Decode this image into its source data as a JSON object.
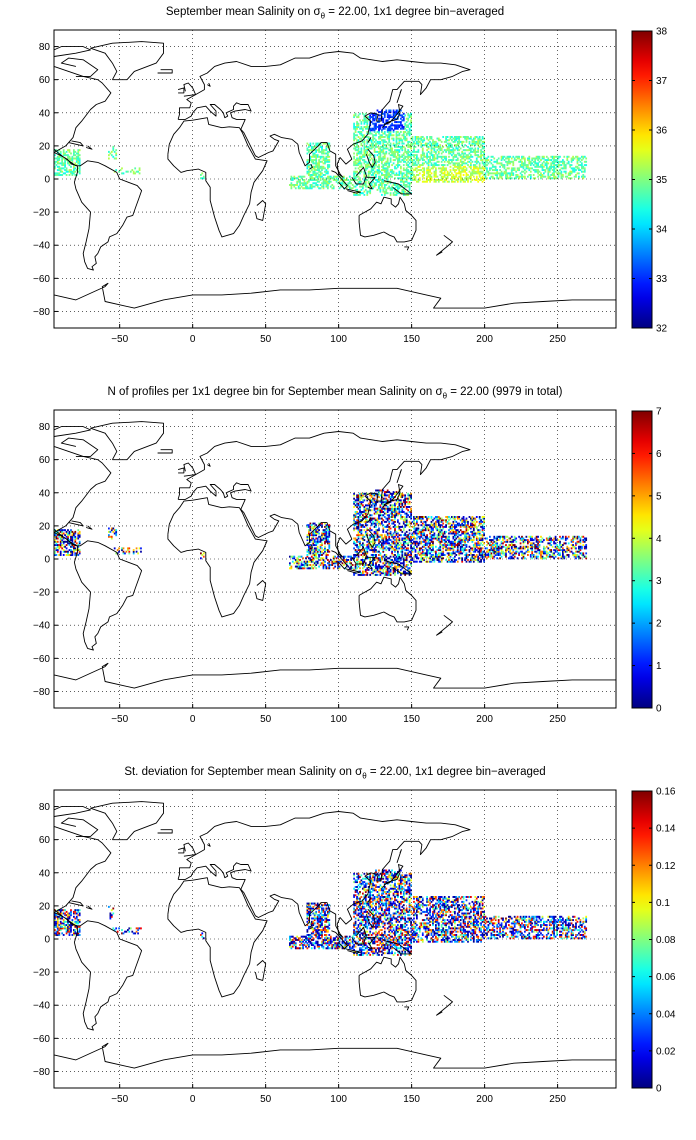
{
  "figures": [
    {
      "id": "salinity-mean",
      "title_prefix": "September mean Salinity on σ",
      "title_sub": "θ",
      "title_suffix": " = 22.00, 1x1 degree bin−averaged",
      "colorbar": {
        "min": 32,
        "max": 38,
        "ticks": [
          "32",
          "33",
          "34",
          "35",
          "36",
          "37",
          "38"
        ]
      },
      "seed": 11
    },
    {
      "id": "profile-count",
      "title_prefix": "N of profiles per 1x1 degree bin for September mean Salinity on σ",
      "title_sub": "θ",
      "title_suffix": " = 22.00 (9979 in total)",
      "colorbar": {
        "min": 0,
        "max": 7,
        "ticks": [
          "0",
          "1",
          "2",
          "3",
          "4",
          "5",
          "6",
          "7"
        ]
      },
      "seed": 23
    },
    {
      "id": "salinity-stdev",
      "title_prefix": "St. deviation for September mean Salinity on σ",
      "title_sub": "θ",
      "title_suffix": " = 22.00, 1x1 degree bin−averaged",
      "colorbar": {
        "min": 0,
        "max": 0.16,
        "ticks": [
          "0",
          "0.02",
          "0.04",
          "0.06",
          "0.08",
          "0.1",
          "0.12",
          "0.14",
          "0.16"
        ]
      },
      "seed": 37
    }
  ],
  "axes": {
    "x_ticks": [
      "−50",
      "0",
      "50",
      "100",
      "150",
      "200",
      "250"
    ],
    "y_ticks": [
      "−80",
      "−60",
      "−40",
      "−20",
      "0",
      "20",
      "40",
      "60",
      "80"
    ],
    "xlim": [
      -95,
      290
    ],
    "ylim": [
      -90,
      90
    ],
    "grid": "dotted"
  },
  "colormap": "jet"
}
